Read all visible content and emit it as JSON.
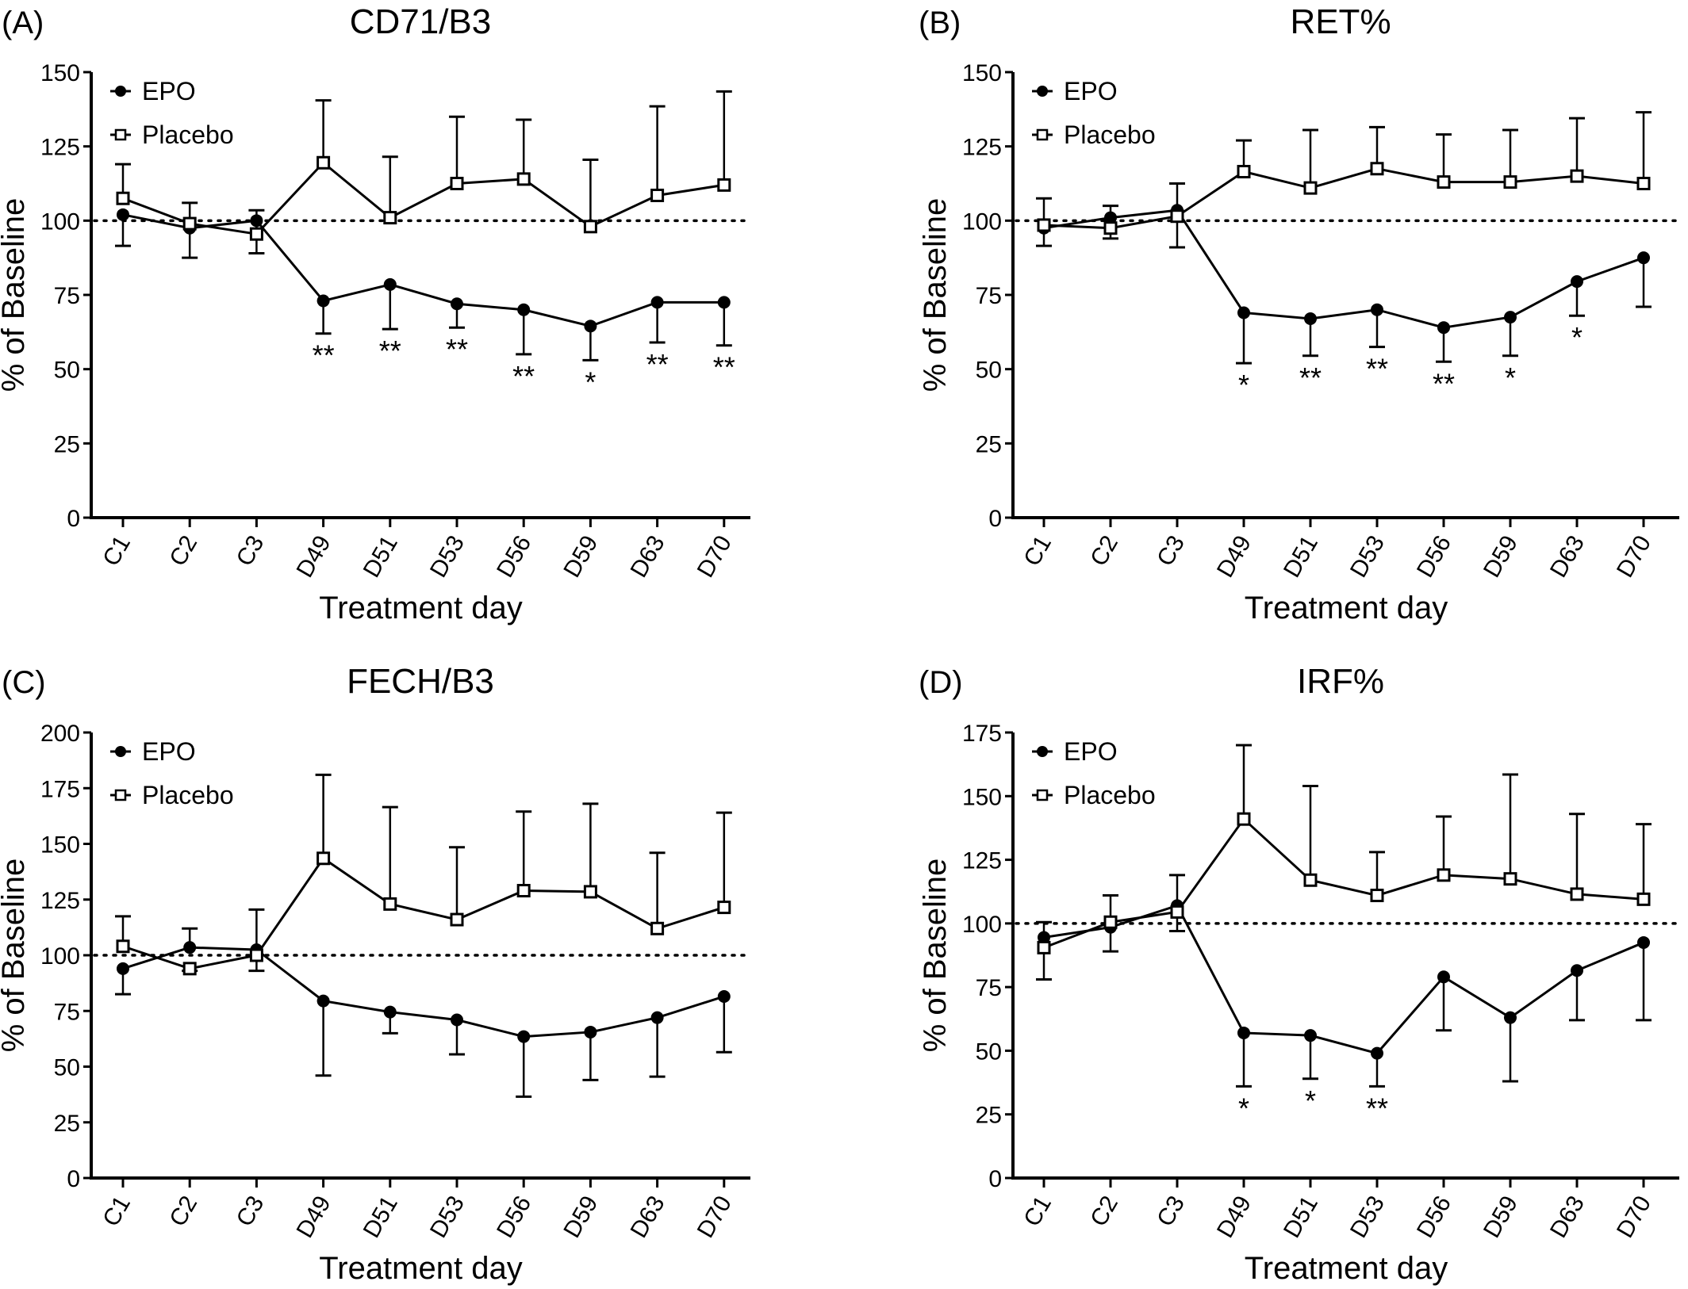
{
  "chart_data": [
    {
      "panel": "(A)",
      "type": "line",
      "title": "CD71/B3",
      "xlabel": "Treatment day",
      "ylabel": "% of Baseline",
      "categories": [
        "C1",
        "C2",
        "C3",
        "D49",
        "D51",
        "D53",
        "D56",
        "D59",
        "D63",
        "D70"
      ],
      "ylim": [
        0,
        150
      ],
      "yticks": [
        0,
        25,
        50,
        75,
        100,
        125,
        150
      ],
      "reference_line": 100,
      "legend": {
        "position": "top-left",
        "entries": [
          "EPO",
          "Placebo"
        ]
      },
      "series": [
        {
          "name": "EPO",
          "marker": "filled-circle",
          "values": [
            102,
            97.5,
            100,
            73,
            78.5,
            72,
            70,
            64.5,
            72.5,
            72.5
          ],
          "error": [
            -10.5,
            -10,
            -11,
            -11,
            -15,
            -8,
            -15,
            -11.5,
            -13.5,
            -14.5
          ],
          "significance": [
            "",
            "",
            "",
            "**",
            "**",
            "**",
            "**",
            "*",
            "**",
            "**"
          ]
        },
        {
          "name": "Placebo",
          "marker": "open-square",
          "values": [
            107.5,
            99,
            95.5,
            119.5,
            101,
            112.5,
            114,
            98,
            108.5,
            112
          ],
          "error": [
            11.5,
            7,
            8,
            21,
            20.5,
            22.5,
            20,
            22.5,
            30,
            31.5
          ]
        }
      ]
    },
    {
      "panel": "(B)",
      "type": "line",
      "title": "RET%",
      "xlabel": "Treatment day",
      "ylabel": "% of Baseline",
      "categories": [
        "C1",
        "C2",
        "C3",
        "D49",
        "D51",
        "D53",
        "D56",
        "D59",
        "D63",
        "D70"
      ],
      "ylim": [
        0,
        150
      ],
      "yticks": [
        0,
        25,
        50,
        75,
        100,
        125,
        150
      ],
      "reference_line": 100,
      "legend": {
        "position": "top-left",
        "entries": [
          "EPO",
          "Placebo"
        ]
      },
      "series": [
        {
          "name": "EPO",
          "marker": "filled-circle",
          "values": [
            97.5,
            101,
            103.5,
            69,
            67,
            70,
            64,
            67.5,
            79.5,
            87.5
          ],
          "error": [
            -6,
            4,
            9,
            -17,
            -12.5,
            -12.5,
            -11.5,
            -13,
            -11.5,
            -16.5
          ],
          "significance": [
            "",
            "",
            "",
            "*",
            "**",
            "**",
            "**",
            "*",
            "*",
            ""
          ]
        },
        {
          "name": "Placebo",
          "marker": "open-square",
          "values": [
            98.5,
            97.5,
            101.5,
            116.5,
            111,
            117.5,
            113,
            113,
            115,
            112.5
          ],
          "error": [
            9,
            -3.5,
            -10.5,
            10.5,
            19.5,
            14,
            16,
            17.5,
            19.5,
            24
          ]
        }
      ]
    },
    {
      "panel": "(C)",
      "type": "line",
      "title": "FECH/B3",
      "xlabel": "Treatment day",
      "ylabel": "% of Baseline",
      "categories": [
        "C1",
        "C2",
        "C3",
        "D49",
        "D51",
        "D53",
        "D56",
        "D59",
        "D63",
        "D70"
      ],
      "ylim": [
        0,
        200
      ],
      "yticks": [
        0,
        25,
        50,
        75,
        100,
        125,
        150,
        175,
        200
      ],
      "reference_line": 100,
      "legend": {
        "position": "top-left",
        "entries": [
          "EPO",
          "Placebo"
        ]
      },
      "series": [
        {
          "name": "EPO",
          "marker": "filled-circle",
          "values": [
            94,
            103.5,
            102.5,
            79.5,
            74.5,
            71,
            63.5,
            65.5,
            72,
            81.5
          ],
          "error": [
            -11.5,
            8.5,
            18,
            -33.5,
            -9.5,
            -15.5,
            -27,
            -21.5,
            -26.5,
            -25
          ],
          "significance": [
            "",
            "",
            "",
            "",
            "",
            "",
            "",
            "",
            "",
            ""
          ]
        },
        {
          "name": "Placebo",
          "marker": "open-square",
          "values": [
            104,
            94,
            100,
            143.5,
            123,
            116,
            129,
            128.5,
            112,
            121.5
          ],
          "error": [
            13.5,
            -1,
            -7,
            37.5,
            43.5,
            32.5,
            35.5,
            39.5,
            34,
            42.5
          ]
        }
      ]
    },
    {
      "panel": "(D)",
      "type": "line",
      "title": "IRF%",
      "xlabel": "Treatment day",
      "ylabel": "% of Baseline",
      "categories": [
        "C1",
        "C2",
        "C3",
        "D49",
        "D51",
        "D53",
        "D56",
        "D59",
        "D63",
        "D70"
      ],
      "ylim": [
        0,
        175
      ],
      "yticks": [
        0,
        25,
        50,
        75,
        100,
        125,
        150,
        175
      ],
      "reference_line": 100,
      "legend": {
        "position": "top-left",
        "entries": [
          "EPO",
          "Placebo"
        ]
      },
      "series": [
        {
          "name": "EPO",
          "marker": "filled-circle",
          "values": [
            94.5,
            98.5,
            107,
            57,
            56,
            49,
            79,
            63,
            81.5,
            92.5
          ],
          "error": [
            6,
            -9.5,
            12,
            -21,
            -17,
            -13,
            -21,
            -25,
            -19.5,
            -30.5
          ],
          "significance": [
            "",
            "",
            "",
            "*",
            "*",
            "**",
            "",
            "",
            "",
            ""
          ]
        },
        {
          "name": "Placebo",
          "marker": "open-square",
          "values": [
            90.5,
            100.5,
            104.5,
            141,
            117,
            111,
            119,
            117.5,
            111.5,
            109.5
          ],
          "error": [
            -12.5,
            10.5,
            -7.5,
            29,
            37,
            17,
            23,
            41,
            31.5,
            29.5
          ]
        }
      ]
    }
  ]
}
